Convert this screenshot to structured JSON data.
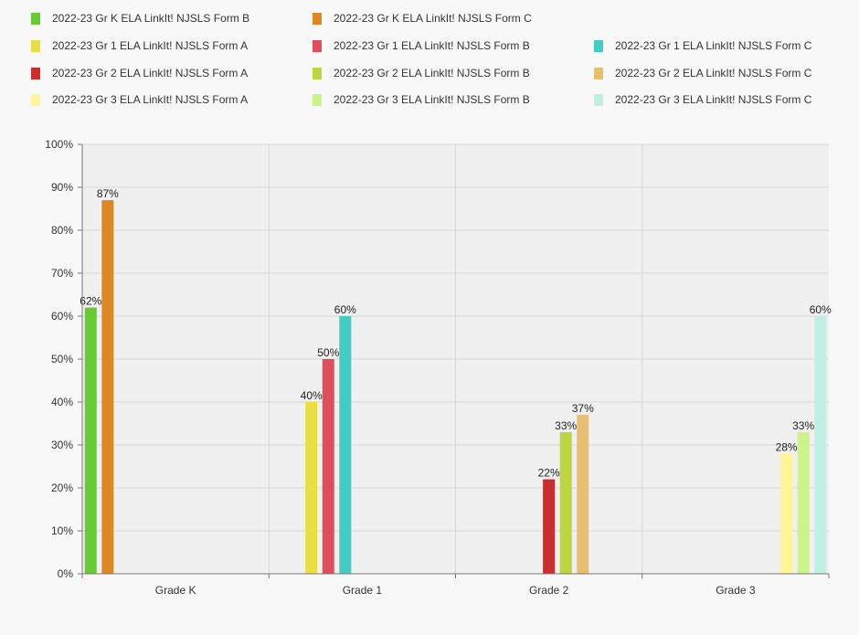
{
  "chart_data": {
    "type": "bar",
    "categories": [
      "Grade K",
      "Grade 1",
      "Grade 2",
      "Grade 3"
    ],
    "yticks": [
      "0%",
      "10%",
      "20%",
      "30%",
      "40%",
      "50%",
      "60%",
      "70%",
      "80%",
      "90%",
      "100%"
    ],
    "ylim": [
      0,
      100
    ],
    "grid": true,
    "legend_position": "top",
    "series": [
      {
        "name": "2022-23 Gr K ELA LinkIt! NJSLS Form B",
        "color": "#66cc33",
        "values": [
          62,
          null,
          null,
          null
        ],
        "labels": [
          "62%",
          "",
          "",
          ""
        ]
      },
      {
        "name": "2022-23 Gr K ELA LinkIt! NJSLS Form C",
        "color": "#dd8822",
        "values": [
          87,
          null,
          null,
          null
        ],
        "labels": [
          "87%",
          "",
          "",
          ""
        ]
      },
      {
        "name": "2022-23 Gr 1 ELA LinkIt! NJSLS Form A",
        "color": "#e8df44",
        "values": [
          null,
          40,
          null,
          null
        ],
        "labels": [
          "",
          "40%",
          "",
          ""
        ]
      },
      {
        "name": "2022-23 Gr 1 ELA LinkIt! NJSLS Form B",
        "color": "#e04e5e",
        "values": [
          null,
          50,
          null,
          null
        ],
        "labels": [
          "",
          "50%",
          "",
          ""
        ]
      },
      {
        "name": "2022-23 Gr 1 ELA LinkIt! NJSLS Form C",
        "color": "#44ccc4",
        "values": [
          null,
          60,
          null,
          null
        ],
        "labels": [
          "",
          "60%",
          "",
          ""
        ]
      },
      {
        "name": "2022-23 Gr 2 ELA LinkIt! NJSLS Form A",
        "color": "#cc2e2e",
        "values": [
          null,
          null,
          22,
          null
        ],
        "labels": [
          "",
          "",
          "22%",
          ""
        ]
      },
      {
        "name": "2022-23 Gr 2 ELA LinkIt! NJSLS Form B",
        "color": "#bbd640",
        "values": [
          null,
          null,
          33,
          null
        ],
        "labels": [
          "",
          "",
          "33%",
          ""
        ]
      },
      {
        "name": "2022-23 Gr 2 ELA LinkIt! NJSLS Form C",
        "color": "#e8be70",
        "values": [
          null,
          null,
          37,
          null
        ],
        "labels": [
          "",
          "",
          "37%",
          ""
        ]
      },
      {
        "name": "2022-23 Gr 3 ELA LinkIt! NJSLS Form A",
        "color": "#fff49a",
        "values": [
          null,
          null,
          null,
          28
        ],
        "labels": [
          "",
          "",
          "",
          "28%"
        ]
      },
      {
        "name": "2022-23 Gr 3 ELA LinkIt! NJSLS Form B",
        "color": "#ccf28a",
        "values": [
          null,
          null,
          null,
          33
        ],
        "labels": [
          "",
          "",
          "",
          "33%"
        ]
      },
      {
        "name": "2022-23 Gr 3 ELA LinkIt! NJSLS Form C",
        "color": "#bff0e4",
        "values": [
          null,
          null,
          null,
          60
        ],
        "labels": [
          "",
          "",
          "",
          "60%"
        ]
      }
    ]
  }
}
